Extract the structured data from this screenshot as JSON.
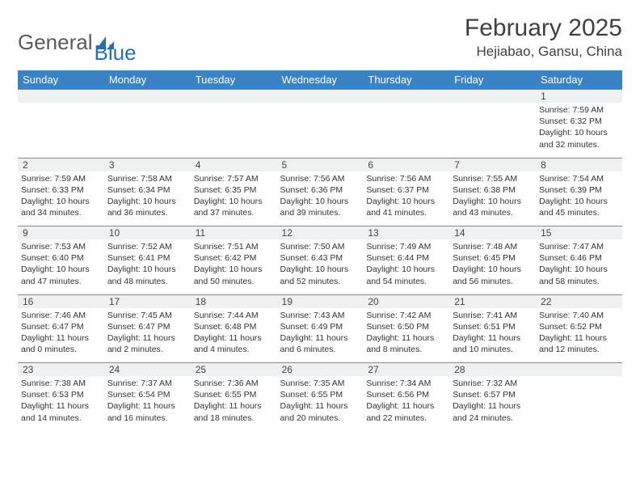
{
  "brand": {
    "word1": "General",
    "word2": "Blue"
  },
  "title": "February 2025",
  "location": "Hejiabao, Gansu, China",
  "header_bg": "#3b82c4",
  "daynum_bg": "#eef0f2",
  "border_color": "#888888",
  "weekdays": [
    "Sunday",
    "Monday",
    "Tuesday",
    "Wednesday",
    "Thursday",
    "Friday",
    "Saturday"
  ],
  "weeks": [
    [
      {
        "n": "",
        "sr": "",
        "ss": "",
        "dl": ""
      },
      {
        "n": "",
        "sr": "",
        "ss": "",
        "dl": ""
      },
      {
        "n": "",
        "sr": "",
        "ss": "",
        "dl": ""
      },
      {
        "n": "",
        "sr": "",
        "ss": "",
        "dl": ""
      },
      {
        "n": "",
        "sr": "",
        "ss": "",
        "dl": ""
      },
      {
        "n": "",
        "sr": "",
        "ss": "",
        "dl": ""
      },
      {
        "n": "1",
        "sr": "Sunrise: 7:59 AM",
        "ss": "Sunset: 6:32 PM",
        "dl": "Daylight: 10 hours and 32 minutes."
      }
    ],
    [
      {
        "n": "2",
        "sr": "Sunrise: 7:59 AM",
        "ss": "Sunset: 6:33 PM",
        "dl": "Daylight: 10 hours and 34 minutes."
      },
      {
        "n": "3",
        "sr": "Sunrise: 7:58 AM",
        "ss": "Sunset: 6:34 PM",
        "dl": "Daylight: 10 hours and 36 minutes."
      },
      {
        "n": "4",
        "sr": "Sunrise: 7:57 AM",
        "ss": "Sunset: 6:35 PM",
        "dl": "Daylight: 10 hours and 37 minutes."
      },
      {
        "n": "5",
        "sr": "Sunrise: 7:56 AM",
        "ss": "Sunset: 6:36 PM",
        "dl": "Daylight: 10 hours and 39 minutes."
      },
      {
        "n": "6",
        "sr": "Sunrise: 7:56 AM",
        "ss": "Sunset: 6:37 PM",
        "dl": "Daylight: 10 hours and 41 minutes."
      },
      {
        "n": "7",
        "sr": "Sunrise: 7:55 AM",
        "ss": "Sunset: 6:38 PM",
        "dl": "Daylight: 10 hours and 43 minutes."
      },
      {
        "n": "8",
        "sr": "Sunrise: 7:54 AM",
        "ss": "Sunset: 6:39 PM",
        "dl": "Daylight: 10 hours and 45 minutes."
      }
    ],
    [
      {
        "n": "9",
        "sr": "Sunrise: 7:53 AM",
        "ss": "Sunset: 6:40 PM",
        "dl": "Daylight: 10 hours and 47 minutes."
      },
      {
        "n": "10",
        "sr": "Sunrise: 7:52 AM",
        "ss": "Sunset: 6:41 PM",
        "dl": "Daylight: 10 hours and 48 minutes."
      },
      {
        "n": "11",
        "sr": "Sunrise: 7:51 AM",
        "ss": "Sunset: 6:42 PM",
        "dl": "Daylight: 10 hours and 50 minutes."
      },
      {
        "n": "12",
        "sr": "Sunrise: 7:50 AM",
        "ss": "Sunset: 6:43 PM",
        "dl": "Daylight: 10 hours and 52 minutes."
      },
      {
        "n": "13",
        "sr": "Sunrise: 7:49 AM",
        "ss": "Sunset: 6:44 PM",
        "dl": "Daylight: 10 hours and 54 minutes."
      },
      {
        "n": "14",
        "sr": "Sunrise: 7:48 AM",
        "ss": "Sunset: 6:45 PM",
        "dl": "Daylight: 10 hours and 56 minutes."
      },
      {
        "n": "15",
        "sr": "Sunrise: 7:47 AM",
        "ss": "Sunset: 6:46 PM",
        "dl": "Daylight: 10 hours and 58 minutes."
      }
    ],
    [
      {
        "n": "16",
        "sr": "Sunrise: 7:46 AM",
        "ss": "Sunset: 6:47 PM",
        "dl": "Daylight: 11 hours and 0 minutes."
      },
      {
        "n": "17",
        "sr": "Sunrise: 7:45 AM",
        "ss": "Sunset: 6:47 PM",
        "dl": "Daylight: 11 hours and 2 minutes."
      },
      {
        "n": "18",
        "sr": "Sunrise: 7:44 AM",
        "ss": "Sunset: 6:48 PM",
        "dl": "Daylight: 11 hours and 4 minutes."
      },
      {
        "n": "19",
        "sr": "Sunrise: 7:43 AM",
        "ss": "Sunset: 6:49 PM",
        "dl": "Daylight: 11 hours and 6 minutes."
      },
      {
        "n": "20",
        "sr": "Sunrise: 7:42 AM",
        "ss": "Sunset: 6:50 PM",
        "dl": "Daylight: 11 hours and 8 minutes."
      },
      {
        "n": "21",
        "sr": "Sunrise: 7:41 AM",
        "ss": "Sunset: 6:51 PM",
        "dl": "Daylight: 11 hours and 10 minutes."
      },
      {
        "n": "22",
        "sr": "Sunrise: 7:40 AM",
        "ss": "Sunset: 6:52 PM",
        "dl": "Daylight: 11 hours and 12 minutes."
      }
    ],
    [
      {
        "n": "23",
        "sr": "Sunrise: 7:38 AM",
        "ss": "Sunset: 6:53 PM",
        "dl": "Daylight: 11 hours and 14 minutes."
      },
      {
        "n": "24",
        "sr": "Sunrise: 7:37 AM",
        "ss": "Sunset: 6:54 PM",
        "dl": "Daylight: 11 hours and 16 minutes."
      },
      {
        "n": "25",
        "sr": "Sunrise: 7:36 AM",
        "ss": "Sunset: 6:55 PM",
        "dl": "Daylight: 11 hours and 18 minutes."
      },
      {
        "n": "26",
        "sr": "Sunrise: 7:35 AM",
        "ss": "Sunset: 6:55 PM",
        "dl": "Daylight: 11 hours and 20 minutes."
      },
      {
        "n": "27",
        "sr": "Sunrise: 7:34 AM",
        "ss": "Sunset: 6:56 PM",
        "dl": "Daylight: 11 hours and 22 minutes."
      },
      {
        "n": "28",
        "sr": "Sunrise: 7:32 AM",
        "ss": "Sunset: 6:57 PM",
        "dl": "Daylight: 11 hours and 24 minutes."
      },
      {
        "n": "",
        "sr": "",
        "ss": "",
        "dl": ""
      }
    ]
  ]
}
